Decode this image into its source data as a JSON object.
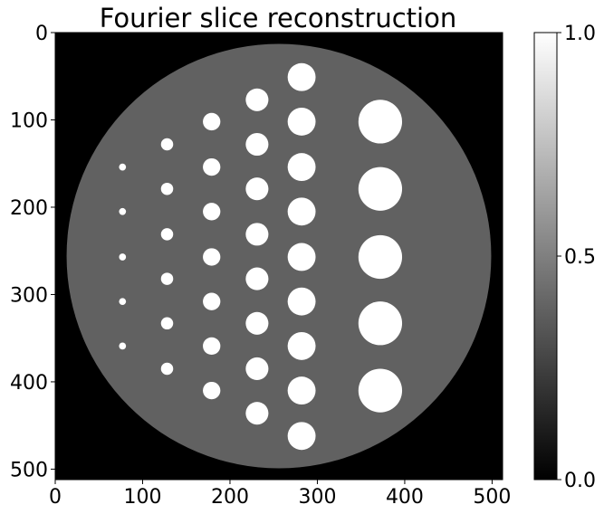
{
  "chart_data": {
    "type": "heatmap",
    "title": "Fourier slice reconstruction",
    "colormap": "gray",
    "image_size": [
      512,
      512
    ],
    "x_ticks": [
      0,
      100,
      200,
      300,
      400,
      500
    ],
    "y_ticks": [
      0,
      100,
      200,
      300,
      400,
      500
    ],
    "xlim": [
      0,
      512
    ],
    "ylim": [
      512,
      0
    ],
    "colorbar": {
      "ticks": [
        0.0,
        0.5,
        1.0
      ],
      "tick_labels": [
        "0.0",
        "0.5",
        "1.0"
      ],
      "range": [
        0.0,
        1.0
      ]
    },
    "background_value": 0.0,
    "phantom_disk": {
      "center": [
        256,
        256
      ],
      "radius": 243,
      "value": 0.38
    },
    "inserts": {
      "value": 1.0,
      "columns": [
        {
          "x": 77,
          "radius": 4,
          "y": [
            154,
            205,
            257,
            308,
            359
          ]
        },
        {
          "x": 128,
          "radius": 7,
          "y": [
            128,
            179,
            231,
            282,
            333,
            385
          ]
        },
        {
          "x": 179,
          "radius": 10,
          "y": [
            102,
            154,
            205,
            257,
            308,
            359,
            410
          ]
        },
        {
          "x": 231,
          "radius": 13,
          "y": [
            77,
            128,
            179,
            231,
            282,
            333,
            385,
            436
          ]
        },
        {
          "x": 282,
          "radius": 16,
          "y": [
            51,
            102,
            154,
            205,
            257,
            308,
            359,
            410,
            462
          ]
        },
        {
          "x": 372,
          "radius": 25,
          "y": [
            102,
            179,
            257,
            333,
            410
          ]
        }
      ]
    }
  }
}
